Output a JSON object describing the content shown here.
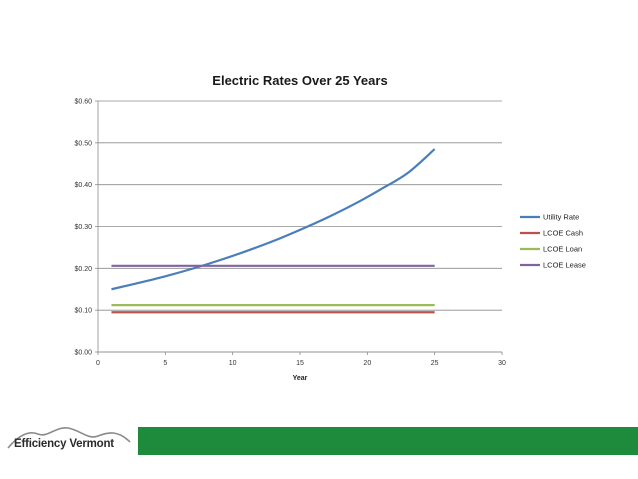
{
  "chart_data": {
    "type": "line",
    "title": "Electric Rates Over 25 Years",
    "xlabel": "Year",
    "ylabel": "",
    "xlim": [
      0,
      30
    ],
    "ylim": [
      0,
      0.6
    ],
    "x_ticks": [
      0,
      5,
      10,
      15,
      20,
      25,
      30
    ],
    "y_ticks": [
      "$0.00",
      "$0.10",
      "$0.20",
      "$0.30",
      "$0.40",
      "$0.50",
      "$0.60"
    ],
    "grid": "horizontal",
    "legend_position": "right",
    "series": [
      {
        "name": "Utility Rate",
        "color": "#4a7ebb",
        "x": [
          1,
          3,
          5,
          7,
          9,
          11,
          13,
          15,
          17,
          19,
          21,
          23,
          25
        ],
        "y": [
          0.15,
          0.165,
          0.181,
          0.199,
          0.219,
          0.241,
          0.265,
          0.292,
          0.321,
          0.353,
          0.389,
          0.428,
          0.485
        ]
      },
      {
        "name": "LCOE Cash",
        "color": "#c0504d",
        "x": [
          1,
          25
        ],
        "y": [
          0.095,
          0.095
        ]
      },
      {
        "name": "LCOE Loan",
        "color": "#9bbb59",
        "x": [
          1,
          25
        ],
        "y": [
          0.112,
          0.112
        ]
      },
      {
        "name": "LCOE Lease",
        "color": "#8064a2",
        "x": [
          1,
          25
        ],
        "y": [
          0.206,
          0.206
        ]
      }
    ]
  },
  "footer": {
    "logo_text": "Efficiency Vermont",
    "bar_color": "#1e8a3c"
  }
}
